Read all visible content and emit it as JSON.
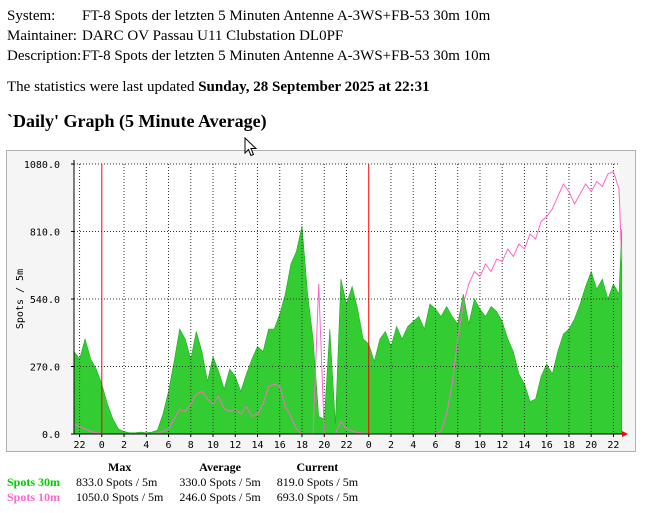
{
  "info": {
    "rows": [
      {
        "label": "System:",
        "value": "FT-8 Spots der letzten 5 Minuten Antenne A-3WS+FB-53 30m 10m"
      },
      {
        "label": "Maintainer:",
        "value": "DARC OV Passau U11 Clubstation DL0PF"
      },
      {
        "label": "Description:",
        "value": "FT-8 Spots der letzten 5 Minuten Antenne A-3WS+FB-53 30m 10m"
      }
    ]
  },
  "updated": {
    "prefix": "The statistics were last updated",
    "date": "Sunday, 28 September 2025 at 22:31"
  },
  "graph_title": "`Daily' Graph (5 Minute Average)",
  "colors": {
    "green": "#33cc33",
    "pink": "#ff66cc",
    "midnight_line": "#ff0000",
    "grid": "#333333"
  },
  "chart_data": {
    "type": "area",
    "ylabel": "Spots / 5m",
    "ylim": [
      0,
      1080
    ],
    "yticks": [
      "0.0",
      "270.0",
      "540.0",
      "810.0",
      "1080.0"
    ],
    "xticks": [
      "22",
      "0",
      "2",
      "4",
      "6",
      "8",
      "10",
      "12",
      "14",
      "16",
      "18",
      "20",
      "22",
      "0",
      "2",
      "4",
      "6",
      "8",
      "10",
      "12",
      "14",
      "16",
      "18",
      "20",
      "22"
    ],
    "midnight_ticks": [
      1,
      13
    ],
    "x_hours_start": 21.5,
    "x_hours_span": 49,
    "series": [
      {
        "name": "Spots 30m",
        "style": "area",
        "points": [
          [
            21.5,
            330
          ],
          [
            22,
            300
          ],
          [
            22.5,
            380
          ],
          [
            23,
            300
          ],
          [
            23.5,
            260
          ],
          [
            24,
            200
          ],
          [
            24.5,
            120
          ],
          [
            25,
            60
          ],
          [
            25.5,
            20
          ],
          [
            26,
            10
          ],
          [
            26.5,
            5
          ],
          [
            27,
            5
          ],
          [
            27.5,
            8
          ],
          [
            28,
            5
          ],
          [
            28.5,
            8
          ],
          [
            29,
            15
          ],
          [
            29.5,
            80
          ],
          [
            30,
            170
          ],
          [
            30.5,
            290
          ],
          [
            31,
            420
          ],
          [
            31.5,
            380
          ],
          [
            32,
            300
          ],
          [
            32.5,
            410
          ],
          [
            33,
            330
          ],
          [
            33.5,
            210
          ],
          [
            34,
            310
          ],
          [
            34.5,
            250
          ],
          [
            35,
            180
          ],
          [
            35.5,
            260
          ],
          [
            36,
            230
          ],
          [
            36.5,
            170
          ],
          [
            37,
            240
          ],
          [
            37.5,
            300
          ],
          [
            38,
            350
          ],
          [
            38.5,
            330
          ],
          [
            39,
            420
          ],
          [
            39.5,
            420
          ],
          [
            40,
            480
          ],
          [
            40.5,
            560
          ],
          [
            41,
            680
          ],
          [
            41.5,
            730
          ],
          [
            42,
            833
          ],
          [
            42.5,
            560
          ],
          [
            43,
            380
          ],
          [
            43.5,
            70
          ],
          [
            44,
            60
          ],
          [
            44.5,
            420
          ],
          [
            45,
            40
          ],
          [
            45.5,
            620
          ],
          [
            46,
            520
          ],
          [
            46.5,
            590
          ],
          [
            47,
            500
          ],
          [
            47.5,
            380
          ],
          [
            48,
            360
          ],
          [
            48.5,
            290
          ],
          [
            49,
            380
          ],
          [
            49.5,
            410
          ],
          [
            50,
            350
          ],
          [
            50.5,
            430
          ],
          [
            51,
            380
          ],
          [
            51.5,
            430
          ],
          [
            52,
            450
          ],
          [
            52.5,
            470
          ],
          [
            53,
            420
          ],
          [
            53.5,
            520
          ],
          [
            54,
            500
          ],
          [
            54.5,
            470
          ],
          [
            55,
            510
          ],
          [
            55.5,
            470
          ],
          [
            56,
            440
          ],
          [
            56.5,
            560
          ],
          [
            57,
            440
          ],
          [
            57.5,
            540
          ],
          [
            58,
            500
          ],
          [
            58.5,
            470
          ],
          [
            59,
            510
          ],
          [
            59.5,
            490
          ],
          [
            60,
            450
          ],
          [
            60.5,
            380
          ],
          [
            61,
            330
          ],
          [
            61.5,
            240
          ],
          [
            62,
            200
          ],
          [
            62.5,
            130
          ],
          [
            63,
            140
          ],
          [
            63.5,
            230
          ],
          [
            64,
            280
          ],
          [
            64.5,
            240
          ],
          [
            65,
            330
          ],
          [
            65.5,
            400
          ],
          [
            66,
            420
          ],
          [
            66.5,
            460
          ],
          [
            67,
            520
          ],
          [
            67.5,
            590
          ],
          [
            68,
            650
          ],
          [
            68.5,
            580
          ],
          [
            69,
            620
          ],
          [
            69.5,
            540
          ],
          [
            70,
            600
          ],
          [
            70.5,
            560
          ],
          [
            70.75,
            819
          ]
        ]
      },
      {
        "name": "Spots 10m",
        "style": "line",
        "points": [
          [
            21.5,
            40
          ],
          [
            22,
            30
          ],
          [
            22.5,
            20
          ],
          [
            23,
            10
          ],
          [
            23.5,
            5
          ],
          [
            24,
            2
          ],
          [
            25,
            0
          ],
          [
            29,
            2
          ],
          [
            30,
            20
          ],
          [
            30.5,
            60
          ],
          [
            31,
            100
          ],
          [
            31.5,
            90
          ],
          [
            32,
            120
          ],
          [
            32.5,
            160
          ],
          [
            33,
            170
          ],
          [
            33.5,
            140
          ],
          [
            34,
            120
          ],
          [
            34.5,
            150
          ],
          [
            35,
            100
          ],
          [
            35.5,
            90
          ],
          [
            36,
            100
          ],
          [
            36.5,
            80
          ],
          [
            37,
            110
          ],
          [
            37.5,
            70
          ],
          [
            38,
            80
          ],
          [
            38.5,
            120
          ],
          [
            39,
            190
          ],
          [
            39.5,
            200
          ],
          [
            40,
            190
          ],
          [
            40.5,
            110
          ],
          [
            41,
            70
          ],
          [
            41.5,
            20
          ],
          [
            42,
            0
          ],
          [
            43,
            0
          ],
          [
            43.5,
            600
          ],
          [
            44,
            0
          ],
          [
            45,
            0
          ],
          [
            45.5,
            50
          ],
          [
            46,
            20
          ],
          [
            47,
            5
          ],
          [
            48,
            2
          ],
          [
            54,
            2
          ],
          [
            54.5,
            10
          ],
          [
            55,
            80
          ],
          [
            55.5,
            200
          ],
          [
            56,
            380
          ],
          [
            56.5,
            520
          ],
          [
            57,
            600
          ],
          [
            57.5,
            650
          ],
          [
            58,
            630
          ],
          [
            58.5,
            680
          ],
          [
            59,
            650
          ],
          [
            59.5,
            700
          ],
          [
            60,
            690
          ],
          [
            60.5,
            740
          ],
          [
            61,
            710
          ],
          [
            61.5,
            760
          ],
          [
            62,
            740
          ],
          [
            62.5,
            800
          ],
          [
            63,
            780
          ],
          [
            63.5,
            850
          ],
          [
            64,
            870
          ],
          [
            64.5,
            900
          ],
          [
            65,
            950
          ],
          [
            65.5,
            1000
          ],
          [
            66,
            970
          ],
          [
            66.5,
            920
          ],
          [
            67,
            960
          ],
          [
            67.5,
            1000
          ],
          [
            68,
            970
          ],
          [
            68.5,
            1010
          ],
          [
            69,
            990
          ],
          [
            69.5,
            1040
          ],
          [
            70,
            1050
          ],
          [
            70.5,
            980
          ],
          [
            70.75,
            693
          ]
        ]
      }
    ]
  },
  "legend": {
    "headers": [
      "Max",
      "Average",
      "Current"
    ],
    "rows": [
      {
        "label": "Spots 30m",
        "max": "833.0 Spots / 5m",
        "avg": "330.0 Spots / 5m",
        "cur": "819.0 Spots / 5m"
      },
      {
        "label": "Spots 10m",
        "max": "1050.0 Spots / 5m",
        "avg": "246.0 Spots / 5m",
        "cur": "693.0 Spots / 5m"
      }
    ]
  }
}
